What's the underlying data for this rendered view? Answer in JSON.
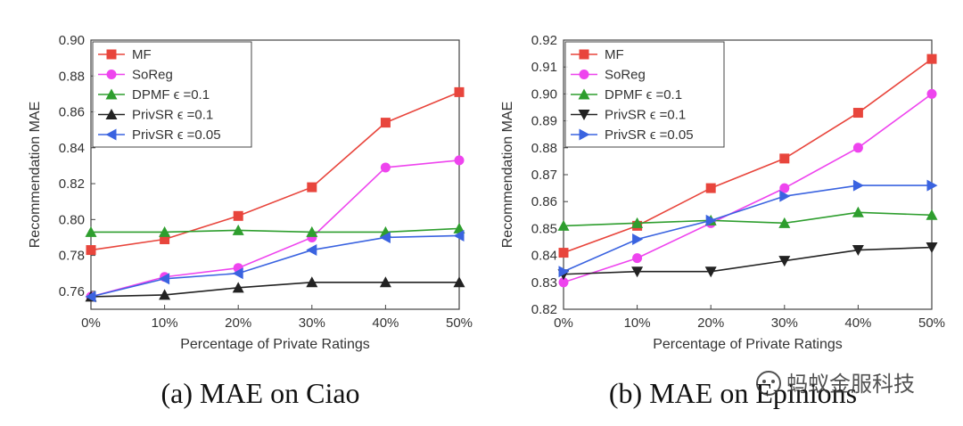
{
  "watermark": "蚂蚁金服科技",
  "chart_data": [
    {
      "type": "line",
      "caption": "(a) MAE on Ciao",
      "xlabel": "Percentage of Private Ratings",
      "ylabel": "Recommendation MAE",
      "categories": [
        "0%",
        "10%",
        "20%",
        "30%",
        "40%",
        "50%"
      ],
      "x": [
        0,
        10,
        20,
        30,
        40,
        50
      ],
      "xticks": [
        "0%",
        "10%",
        "20%",
        "30%",
        "40%",
        "50%"
      ],
      "ylim": [
        0.75,
        0.9
      ],
      "yticks": [
        "0.76",
        "0.78",
        "0.80",
        "0.82",
        "0.84",
        "0.86",
        "0.88",
        "0.90"
      ],
      "yticks_values": [
        0.76,
        0.78,
        0.8,
        0.82,
        0.84,
        0.86,
        0.88,
        0.9
      ],
      "legend_position": "top-left",
      "series": [
        {
          "name": "MF",
          "color": "#e8453c",
          "marker": "square",
          "values": [
            0.783,
            0.789,
            0.802,
            0.818,
            0.854,
            0.871
          ]
        },
        {
          "name": "SoReg",
          "color": "#ee44ee",
          "marker": "circle",
          "values": [
            0.757,
            0.768,
            0.773,
            0.79,
            0.829,
            0.833
          ]
        },
        {
          "name": "DPMF  ϵ =0.1",
          "color": "#2e9e2e",
          "marker": "triangle-up",
          "values": [
            0.793,
            0.793,
            0.794,
            0.793,
            0.793,
            0.795
          ]
        },
        {
          "name": "PrivSR  ϵ =0.1",
          "color": "#222222",
          "marker": "triangle-up",
          "values": [
            0.757,
            0.758,
            0.762,
            0.765,
            0.765,
            0.765
          ]
        },
        {
          "name": "PrivSR  ϵ =0.05",
          "color": "#3a63e0",
          "marker": "triangle-left",
          "values": [
            0.757,
            0.767,
            0.77,
            0.783,
            0.79,
            0.791
          ]
        }
      ]
    },
    {
      "type": "line",
      "caption": "(b) MAE on Epinions",
      "xlabel": "Percentage of Private Ratings",
      "ylabel": "Recommendation MAE",
      "categories": [
        "0%",
        "10%",
        "20%",
        "30%",
        "40%",
        "50%"
      ],
      "x": [
        0,
        10,
        20,
        30,
        40,
        50
      ],
      "xticks": [
        "0%",
        "10%",
        "20%",
        "30%",
        "40%",
        "50%"
      ],
      "ylim": [
        0.82,
        0.92
      ],
      "yticks": [
        "0.82",
        "0.83",
        "0.84",
        "0.85",
        "0.86",
        "0.87",
        "0.88",
        "0.89",
        "0.90",
        "0.91",
        "0.92"
      ],
      "yticks_values": [
        0.82,
        0.83,
        0.84,
        0.85,
        0.86,
        0.87,
        0.88,
        0.89,
        0.9,
        0.91,
        0.92
      ],
      "legend_position": "top-left",
      "series": [
        {
          "name": "MF",
          "color": "#e8453c",
          "marker": "square",
          "values": [
            0.841,
            0.851,
            0.865,
            0.876,
            0.893,
            0.913
          ]
        },
        {
          "name": "SoReg",
          "color": "#ee44ee",
          "marker": "circle",
          "values": [
            0.83,
            0.839,
            0.852,
            0.865,
            0.88,
            0.9
          ]
        },
        {
          "name": "DPMF  ϵ =0.1",
          "color": "#2e9e2e",
          "marker": "triangle-up",
          "values": [
            0.851,
            0.852,
            0.853,
            0.852,
            0.856,
            0.855
          ]
        },
        {
          "name": "PrivSR  ϵ =0.1",
          "color": "#222222",
          "marker": "triangle-down",
          "values": [
            0.833,
            0.834,
            0.834,
            0.838,
            0.842,
            0.843
          ]
        },
        {
          "name": "PrivSR  ϵ =0.05",
          "color": "#3a63e0",
          "marker": "triangle-right",
          "values": [
            0.834,
            0.846,
            0.853,
            0.862,
            0.866,
            0.866
          ]
        }
      ]
    }
  ]
}
